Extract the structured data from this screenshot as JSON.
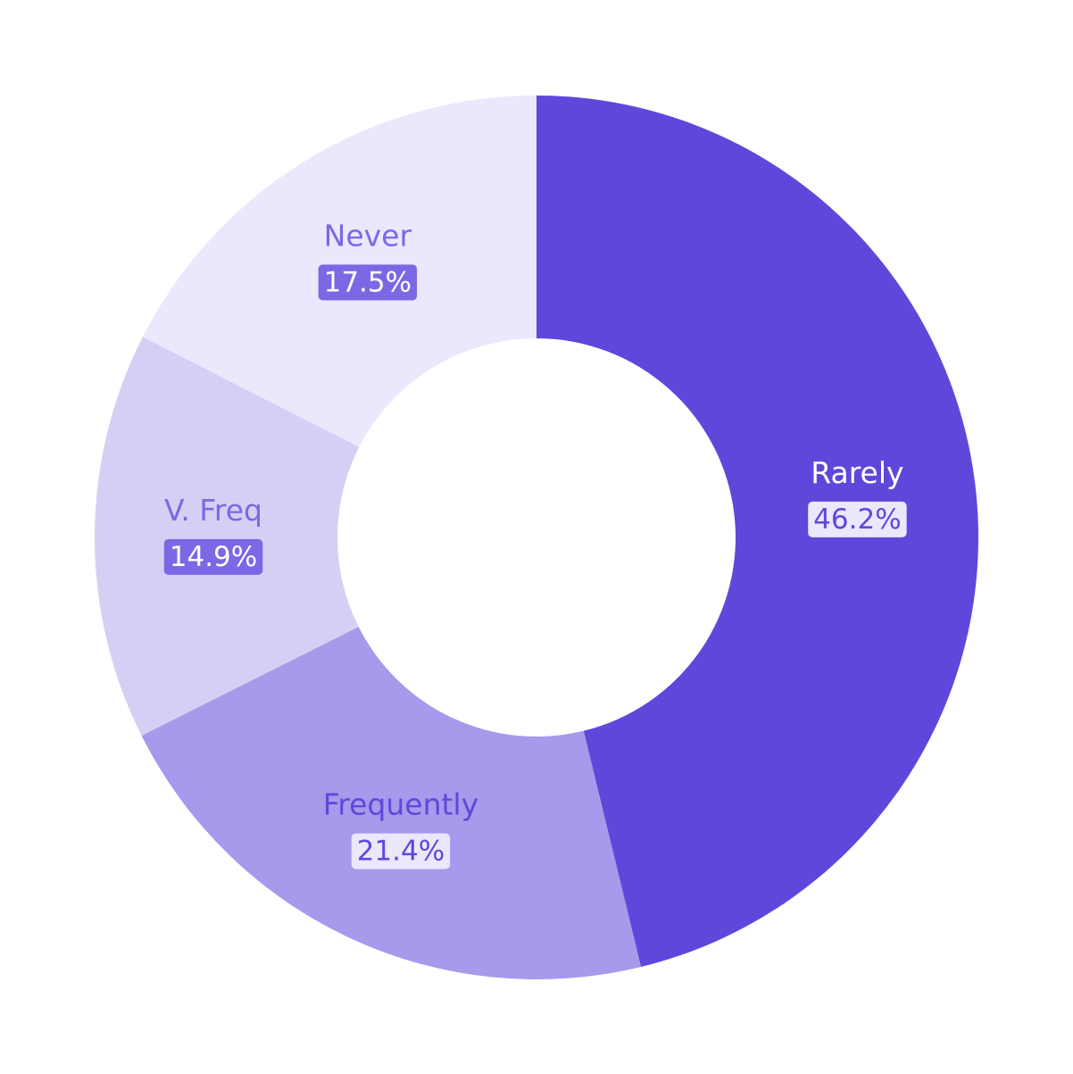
{
  "chart_data": {
    "type": "pie",
    "variant": "donut",
    "title": "",
    "slices": [
      {
        "label": "Rarely",
        "value": 46.2,
        "display": "46.2%",
        "color": "#5e48db",
        "label_color": "#ffffff",
        "badge_color": "#ebe7fd",
        "badge_text_color": "#5e48db"
      },
      {
        "label": "Frequently",
        "value": 21.4,
        "display": "21.4%",
        "color": "#a59aeb",
        "label_color": "#5e48db",
        "badge_color": "#ebe7fd",
        "badge_text_color": "#5e48db"
      },
      {
        "label": "V. Freq",
        "value": 14.9,
        "display": "14.9%",
        "color": "#d5cff5",
        "label_color": "#7b68e4",
        "badge_color": "#7b68e4",
        "badge_text_color": "#ffffff"
      },
      {
        "label": "Never",
        "value": 17.5,
        "display": "17.5%",
        "color": "#ebe7fd",
        "label_color": "#7b68e4",
        "badge_color": "#7b68e4",
        "badge_text_color": "#ffffff"
      }
    ],
    "start_angle_deg": 0,
    "direction": "clockwise",
    "legend": "none"
  }
}
